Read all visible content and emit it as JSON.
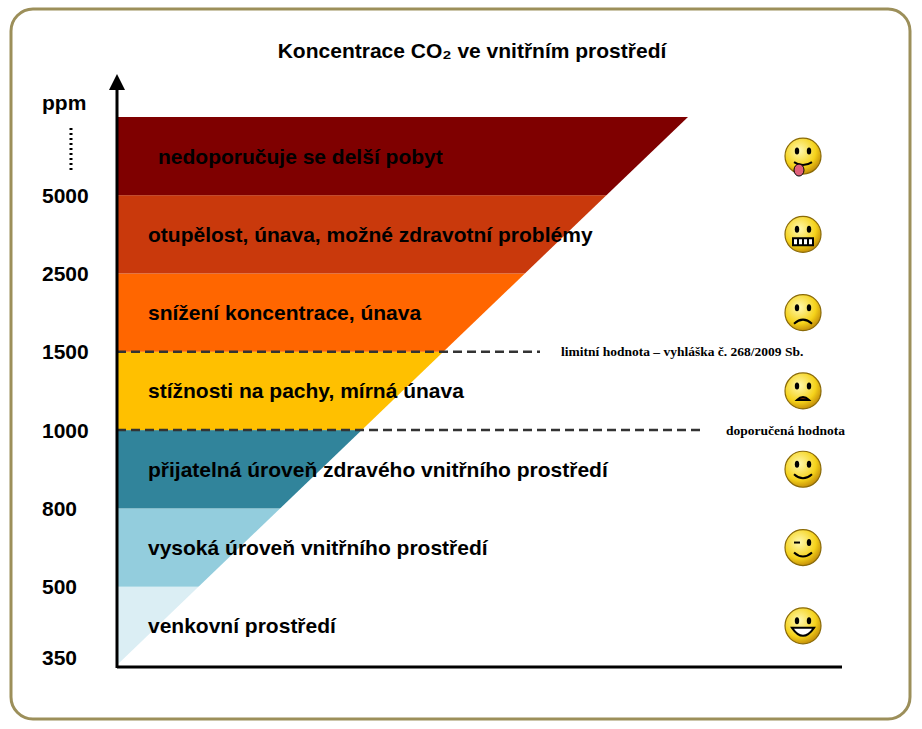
{
  "chart_data": {
    "type": "band",
    "title": "Koncentrace CO₂ ve vnitřním prostředí",
    "y_label": "ppm",
    "yticks": [
      350,
      500,
      800,
      1000,
      1500,
      2500,
      5000
    ],
    "bands": [
      {
        "from": 350,
        "to": 500,
        "label": "venkovní prostředí",
        "color": "#dbeef4"
      },
      {
        "from": 500,
        "to": 800,
        "label": "vysoká úroveň vnitřního prostředí",
        "color": "#93cddd"
      },
      {
        "from": 800,
        "to": 1000,
        "label": "přijatelná úroveň zdravého vnitřního prostředí",
        "color": "#31849b"
      },
      {
        "from": 1000,
        "to": 1500,
        "label": "stížnosti na pachy, mírná únava",
        "color": "#ffc000"
      },
      {
        "from": 1500,
        "to": 2500,
        "label": "snížení koncentrace, únava",
        "color": "#ff6600"
      },
      {
        "from": 2500,
        "to": 5000,
        "label": "otupělost, únava, možné zdravotní problémy",
        "color": "#c9390c"
      },
      {
        "from": 5000,
        "to": null,
        "label": "nedoporučuje se delší pobyt",
        "color": "#7f0000"
      }
    ],
    "thresholds": [
      {
        "value": 1500,
        "label": "limitní hodnota  – vyhláška  č. 268/2009 Sb."
      },
      {
        "value": 1000,
        "label": "doporučená hodnota"
      }
    ]
  }
}
